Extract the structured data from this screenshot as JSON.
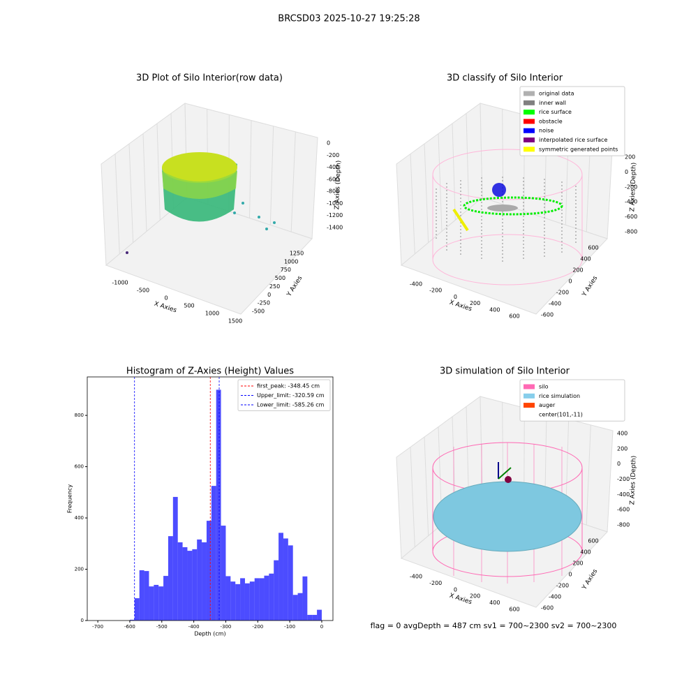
{
  "title": "BRCSD03 2025-10-27 19:25:28",
  "footer": "flag = 0    avgDepth = 487 cm  sv1 = 700~2300  sv2 = 700~2300",
  "chart_data": [
    {
      "type": "scatter3d",
      "title": "3D Plot of Silo Interior(row data)",
      "xlabel": "X Axies",
      "ylabel": "Y Axies",
      "zlabel": "Z Axies (Depth)",
      "xticks": [
        -1000,
        -500,
        0,
        500,
        1000,
        1500
      ],
      "yticks": [
        -500,
        -250,
        0,
        250,
        500,
        750,
        1000,
        1250
      ],
      "zticks": [
        0,
        -200,
        -400,
        -600,
        -800,
        -1000,
        -1200,
        -1400
      ]
    },
    {
      "type": "scatter3d",
      "title": "3D classify of Silo Interior",
      "xlabel": "X Axies",
      "ylabel": "Y Axies",
      "zlabel": "Z Axies (Depth)",
      "xticks": [
        -400,
        -200,
        0,
        200,
        400,
        600
      ],
      "yticks": [
        -600,
        -400,
        -200,
        0,
        200,
        400,
        600
      ],
      "zticks": [
        200,
        0,
        -200,
        -400,
        -600,
        -800
      ],
      "series": [
        {
          "name": "original data",
          "color": "#b0b0b0"
        },
        {
          "name": "inner wall",
          "color": "#808080"
        },
        {
          "name": "rice surface",
          "color": "#00ff00"
        },
        {
          "name": "obstacle",
          "color": "#ff0000"
        },
        {
          "name": "noise",
          "color": "#0000ff"
        },
        {
          "name": "interpolated rice surface",
          "color": "#800080"
        },
        {
          "name": "symmetric generated points",
          "color": "#ffff00"
        }
      ]
    },
    {
      "type": "histogram",
      "title": "Histogram of Z-Axies (Height) Values",
      "xlabel": "Depth (cm)",
      "ylabel": "Frequency",
      "color": "#0000ff",
      "bins": [
        -600,
        -585,
        -570,
        -555,
        -540,
        -525,
        -510,
        -495,
        -480,
        -465,
        -450,
        -435,
        -420,
        -405,
        -390,
        -375,
        -360,
        -345,
        -330,
        -315,
        -300,
        -285,
        -270,
        -255,
        -240,
        -225,
        -210,
        -195,
        -180,
        -165,
        -150,
        -135,
        -120,
        -105,
        -90,
        -75,
        -60,
        -45,
        -30,
        -15,
        0
      ],
      "values": [
        3,
        87,
        196,
        193,
        133,
        139,
        133,
        174,
        329,
        482,
        305,
        286,
        272,
        278,
        316,
        305,
        389,
        525,
        900,
        370,
        173,
        152,
        142,
        165,
        145,
        152,
        165,
        165,
        175,
        183,
        235,
        342,
        320,
        293,
        100,
        107,
        172,
        22,
        22,
        42
      ],
      "xlim": [
        -733,
        35
      ],
      "ylim": [
        0,
        950
      ],
      "xticks": [
        -700,
        -600,
        -500,
        -400,
        -300,
        -200,
        -100,
        0
      ],
      "yticks": [
        0,
        200,
        400,
        600,
        800
      ],
      "lines": [
        {
          "name": "first_peak: -348.45 cm",
          "value": -348.45,
          "color": "#ff0000"
        },
        {
          "name": "Upper_limit: -320.59 cm",
          "value": -320.59,
          "color": "#0000ff"
        },
        {
          "name": "Lower_limit: -585.26 cm",
          "value": -585.26,
          "color": "#0000ff"
        }
      ],
      "legend": "upper right"
    },
    {
      "type": "scatter3d",
      "title": "3D simulation of Silo Interior",
      "xlabel": "X Axies",
      "ylabel": "Y Axies",
      "zlabel": "Z Axies (Depth)",
      "xticks": [
        -400,
        -200,
        0,
        200,
        400,
        600
      ],
      "yticks": [
        -600,
        -400,
        -200,
        0,
        200,
        400,
        600
      ],
      "zticks": [
        400,
        200,
        0,
        -200,
        -400,
        -600,
        -800
      ],
      "series": [
        {
          "name": "silo",
          "color": "#ff69b4"
        },
        {
          "name": "rice simulation",
          "color": "#87ceeb"
        },
        {
          "name": "auger",
          "color": "#ff4500"
        },
        {
          "name": "center(101,-11)"
        }
      ]
    }
  ]
}
